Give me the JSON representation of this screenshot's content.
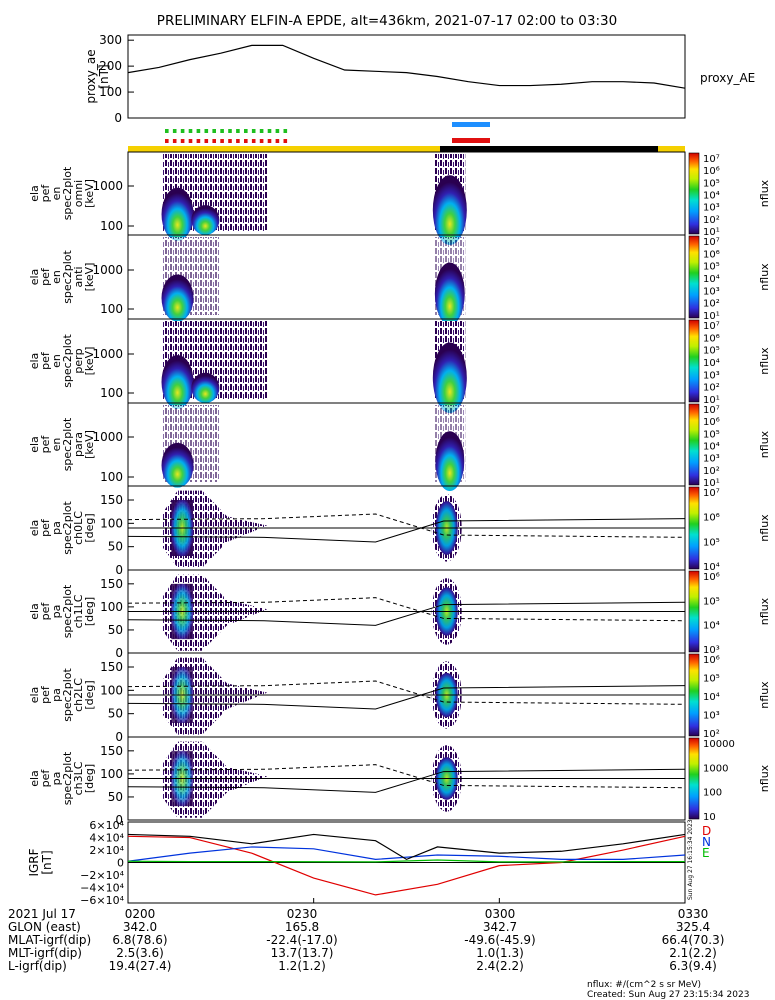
{
  "title": "PRELIMINARY ELFIN-A EPDE, alt=436km, 2021-07-17 02:00 to 03:30",
  "proxy_ae": {
    "ylabel": [
      "proxy_ae",
      "[nT]"
    ],
    "legend": "proxy_AE",
    "yticks": [
      "300",
      "200",
      "100",
      "0"
    ]
  },
  "panels": [
    {
      "ylabel": [
        "ela",
        "pef",
        "en",
        "spec2plot",
        "omni",
        "[keV]"
      ],
      "yticks": [
        "1000",
        "100"
      ],
      "cbar_ticks": [
        "10⁷",
        "10⁶",
        "10⁵",
        "10⁴",
        "10³",
        "10²",
        "10¹"
      ],
      "cbar_label": "nflux"
    },
    {
      "ylabel": [
        "ela",
        "pef",
        "en",
        "spec2plot",
        "anti",
        "[keV]"
      ],
      "yticks": [
        "1000",
        "100"
      ],
      "cbar_ticks": [
        "10⁷",
        "10⁶",
        "10⁵",
        "10⁴",
        "10³",
        "10²",
        "10¹"
      ],
      "cbar_label": "nflux"
    },
    {
      "ylabel": [
        "ela",
        "pef",
        "en",
        "spec2plot",
        "perp",
        "[keV]"
      ],
      "yticks": [
        "1000",
        "100"
      ],
      "cbar_ticks": [
        "10⁷",
        "10⁶",
        "10⁵",
        "10⁴",
        "10³",
        "10²",
        "10¹"
      ],
      "cbar_label": "nflux"
    },
    {
      "ylabel": [
        "ela",
        "pef",
        "en",
        "spec2plot",
        "para",
        "[keV]"
      ],
      "yticks": [
        "1000",
        "100"
      ],
      "cbar_ticks": [
        "10⁷",
        "10⁶",
        "10⁵",
        "10⁴",
        "10³",
        "10²",
        "10¹"
      ],
      "cbar_label": "nflux"
    },
    {
      "ylabel": [
        "ela",
        "pef",
        "pa",
        "spec2plot",
        "ch0LC",
        "[deg]"
      ],
      "yticks": [
        "150",
        "100",
        "50",
        "0"
      ],
      "cbar_ticks": [
        "10⁷",
        "10⁶",
        "10⁵",
        "10⁴"
      ],
      "cbar_label": "nflux"
    },
    {
      "ylabel": [
        "ela",
        "pef",
        "pa",
        "spec2plot",
        "ch1LC",
        "[deg]"
      ],
      "yticks": [
        "150",
        "100",
        "50",
        "0"
      ],
      "cbar_ticks": [
        "10⁶",
        "10⁵",
        "10⁴",
        "10³"
      ],
      "cbar_label": "nflux"
    },
    {
      "ylabel": [
        "ela",
        "pef",
        "pa",
        "spec2plot",
        "ch2LC",
        "[deg]"
      ],
      "yticks": [
        "150",
        "100",
        "50",
        "0"
      ],
      "cbar_ticks": [
        "10⁶",
        "10⁵",
        "10⁴",
        "10³",
        "10²"
      ],
      "cbar_label": "nflux"
    },
    {
      "ylabel": [
        "ela",
        "pef",
        "pa",
        "spec2plot",
        "ch3LC",
        "[deg]"
      ],
      "yticks": [
        "150",
        "100",
        "50",
        "0"
      ],
      "cbar_ticks": [
        "10000",
        "1000",
        "100",
        "10"
      ],
      "cbar_label": "nflux"
    }
  ],
  "igrf": {
    "ylabel": [
      "IGRF",
      "[nT]"
    ],
    "yticks": [
      "6×10⁴",
      "4×10⁴",
      "2×10⁴",
      "0",
      "−2×10⁴",
      "−4×10⁴",
      "−6×10⁴"
    ],
    "legend": [
      "D",
      "N",
      "E"
    ],
    "legend_colors": [
      "#e00000",
      "#0033dd",
      "#00bb00"
    ],
    "stamp": "Sun Aug 27 16:15:34 2023"
  },
  "footer": {
    "rows": [
      {
        "label": "2021 Jul 17",
        "values": [
          "0200",
          "0230",
          "0300",
          "0330"
        ]
      },
      {
        "label": "GLON (east)",
        "values": [
          "342.0",
          "165.8",
          "342.7",
          "325.4"
        ]
      },
      {
        "label": "MLAT-igrf(dip)",
        "values": [
          "6.8(78.6)",
          "-22.4(-17.0)",
          "-49.6(-45.9)",
          "66.4(70.3)"
        ]
      },
      {
        "label": "MLT-igrf(dip)",
        "values": [
          "2.5(3.6)",
          "13.7(13.7)",
          "1.0(1.3)",
          "2.1(2.2)"
        ]
      },
      {
        "label": "L-igrf(dip)",
        "values": [
          "19.4(27.4)",
          "1.2(1.2)",
          "2.4(2.2)",
          "6.3(9.4)"
        ]
      }
    ],
    "note_1": "nflux: #/(cm^2 s sr MeV)",
    "note_2": "Created: Sun Aug 27 23:15:34 2023"
  },
  "chart_data": [
    {
      "type": "line",
      "title": "PRELIMINARY ELFIN-A EPDE, alt=436km, 2021-07-17 02:00 to 03:30",
      "ylabel": "proxy_ae [nT]",
      "ylim": [
        0,
        320
      ],
      "x_minutes_after_0200": [
        0,
        5,
        10,
        15,
        20,
        25,
        30,
        35,
        40,
        45,
        50,
        55,
        60,
        65,
        70,
        75,
        80,
        85,
        90
      ],
      "series": [
        {
          "name": "proxy_AE",
          "values": [
            175,
            195,
            225,
            250,
            280,
            280,
            230,
            185,
            180,
            175,
            160,
            140,
            125,
            125,
            130,
            140,
            140,
            135,
            115
          ]
        }
      ]
    },
    {
      "type": "heatmap",
      "ylabel": "energy [keV]",
      "ylim": [
        63,
        7000
      ],
      "note": "energy spectrograms, electron nflux, log color scale 10^1 to 10^7",
      "active_intervals_minutes_after_0200": [
        [
          5.5,
          22.5
        ],
        [
          49.5,
          54.5
        ]
      ]
    },
    {
      "type": "heatmap",
      "ylabel": "pitch angle [deg]",
      "ylim": [
        0,
        180
      ],
      "note": "pitch-angle spectrograms ch0LC..ch3LC with loss-cone lines",
      "active_intervals_minutes_after_0200": [
        [
          5.5,
          22.5
        ],
        [
          49.5,
          54.5
        ]
      ]
    },
    {
      "type": "line",
      "ylabel": "IGRF [nT]",
      "ylim": [
        -65000,
        65000
      ],
      "x_minutes_after_0200": [
        0,
        10,
        20,
        30,
        40,
        50,
        60,
        70,
        80,
        90
      ],
      "series": [
        {
          "name": "D",
          "values": [
            42000,
            40000,
            15000,
            -25000,
            -52000,
            -35000,
            -5000,
            0,
            20000,
            42000
          ]
        },
        {
          "name": "N",
          "values": [
            2000,
            15000,
            25000,
            22000,
            5000,
            12000,
            10000,
            5000,
            5000,
            12000
          ]
        },
        {
          "name": "E",
          "values": [
            2000,
            1500,
            1500,
            1200,
            1000,
            4000,
            1000,
            1000,
            1500,
            1500
          ]
        }
      ]
    }
  ]
}
